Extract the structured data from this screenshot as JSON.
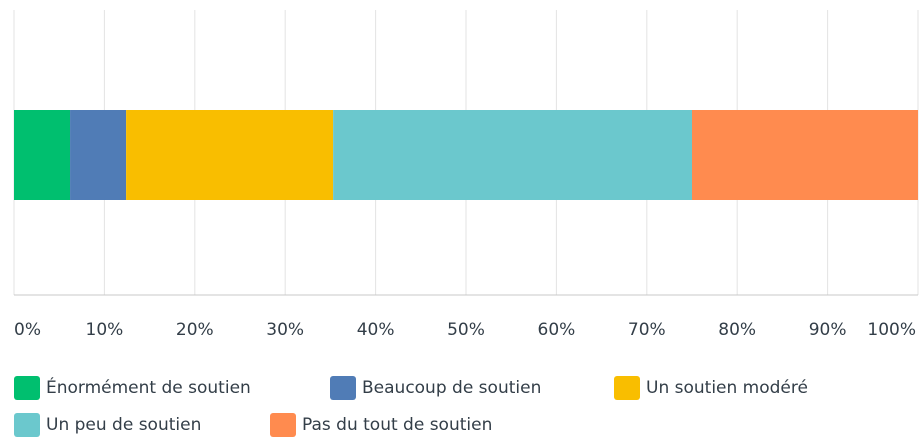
{
  "chart_data": {
    "type": "stacked-bar-horizontal",
    "series": [
      {
        "name": "Énormément de soutien",
        "color": "#00bf6f",
        "values": [
          6.2
        ]
      },
      {
        "name": "Beaucoup de soutien",
        "color": "#507cb6",
        "values": [
          6.2
        ]
      },
      {
        "name": "Un soutien modéré",
        "color": "#f9be00",
        "values": [
          22.9
        ]
      },
      {
        "name": "Un peu de soutien",
        "color": "#6bc8cd",
        "values": [
          39.7
        ]
      },
      {
        "name": "Pas du tout de soutien",
        "color": "#ff8b4f",
        "values": [
          25.0
        ]
      }
    ],
    "xlim": [
      0,
      100
    ],
    "xticks": [
      {
        "value": 0,
        "label": "0%"
      },
      {
        "value": 10,
        "label": "10%"
      },
      {
        "value": 20,
        "label": "20%"
      },
      {
        "value": 30,
        "label": "30%"
      },
      {
        "value": 40,
        "label": "40%"
      },
      {
        "value": 50,
        "label": "50%"
      },
      {
        "value": 60,
        "label": "60%"
      },
      {
        "value": 70,
        "label": "70%"
      },
      {
        "value": 80,
        "label": "80%"
      },
      {
        "value": 90,
        "label": "90%"
      },
      {
        "value": 100,
        "label": "100%"
      }
    ],
    "grid": true,
    "legend": "bottom"
  }
}
